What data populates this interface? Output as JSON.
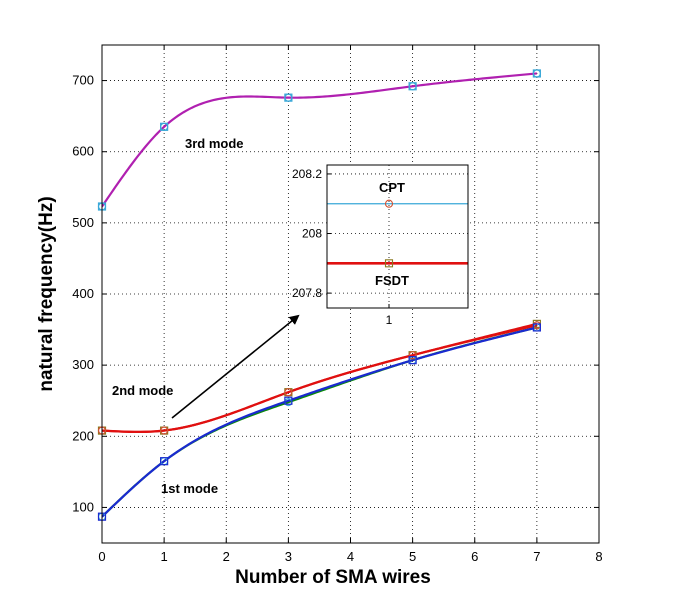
{
  "chart_data": {
    "type": "line",
    "title": "",
    "xlabel": "Number of SMA wires",
    "ylabel": "natural frequency(Hz)",
    "xlim": [
      0,
      8
    ],
    "ylim": [
      50,
      750
    ],
    "xticks": [
      0,
      1,
      2,
      3,
      4,
      5,
      6,
      7,
      8
    ],
    "yticks": [
      100,
      200,
      300,
      400,
      500,
      600,
      700
    ],
    "grid": true,
    "series": [
      {
        "name": "3rd mode",
        "color": "#b020b0",
        "marker": "circle+square",
        "marker_color": "#3aa8d8",
        "x": [
          0,
          1,
          3,
          5,
          7
        ],
        "y": [
          523,
          635,
          676,
          692,
          710
        ]
      },
      {
        "name": "2nd mode FSDT",
        "color": "#e01010",
        "marker": "square",
        "marker_color": "#8a7a20",
        "x": [
          0,
          1,
          3,
          5,
          7
        ],
        "y": [
          208,
          208,
          262,
          314,
          358
        ]
      },
      {
        "name": "2nd mode CPT",
        "color": "#e01010",
        "marker": "circle",
        "marker_color": "#d05030",
        "x": [
          0,
          1,
          3,
          5,
          7
        ],
        "y": [
          208.1,
          208.1,
          262,
          314,
          356
        ]
      },
      {
        "name": "1st mode CPT",
        "color": "#0a8a0a",
        "marker": "circle",
        "marker_color": "#3aa8d8",
        "x": [
          0,
          1,
          3,
          5,
          7
        ],
        "y": [
          87,
          165,
          248,
          307,
          353
        ]
      },
      {
        "name": "1st mode FSDT",
        "color": "#1a2ad0",
        "marker": "square",
        "marker_color": "#1a2ad0",
        "x": [
          0,
          1,
          3,
          5,
          7
        ],
        "y": [
          87,
          165,
          250,
          307,
          353
        ]
      }
    ],
    "annotations": [
      "3rd mode",
      "2nd mode",
      "1st mode"
    ],
    "inset": {
      "xtick": "1",
      "yticks": [
        "207.8",
        "208",
        "208.2"
      ],
      "ylim": [
        207.75,
        208.23
      ],
      "series": [
        {
          "name": "CPT",
          "value": 208.1,
          "color": "#3aa8d8",
          "marker": "circle",
          "marker_color": "#d05030"
        },
        {
          "name": "FSDT",
          "value": 207.9,
          "color": "#e01010",
          "marker": "square",
          "marker_color": "#8a7a20"
        }
      ]
    }
  }
}
